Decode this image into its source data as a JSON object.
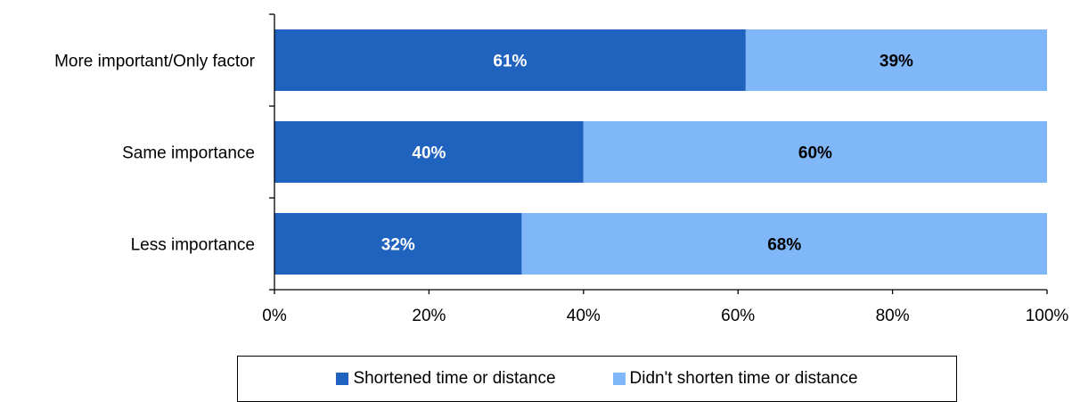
{
  "chart_data": {
    "type": "bar",
    "orientation": "horizontal",
    "stacked": true,
    "categories": [
      "More important/Only factor",
      "Same importance",
      "Less importance"
    ],
    "series": [
      {
        "name": "Shortened time or distance",
        "values": [
          61,
          40,
          32
        ],
        "color": "#1f63be",
        "label_color": "#ffffff"
      },
      {
        "name": "Didn't shorten time or distance",
        "values": [
          39,
          60,
          68
        ],
        "color": "#7fb7f9",
        "label_color": "#000000"
      }
    ],
    "data_labels": [
      [
        "61%",
        "40%",
        "32%"
      ],
      [
        "39%",
        "60%",
        "68%"
      ]
    ],
    "x_ticks": [
      "0%",
      "20%",
      "40%",
      "60%",
      "80%",
      "100%"
    ],
    "xlim": [
      0,
      100
    ],
    "grid": false,
    "legend_position": "bottom"
  }
}
